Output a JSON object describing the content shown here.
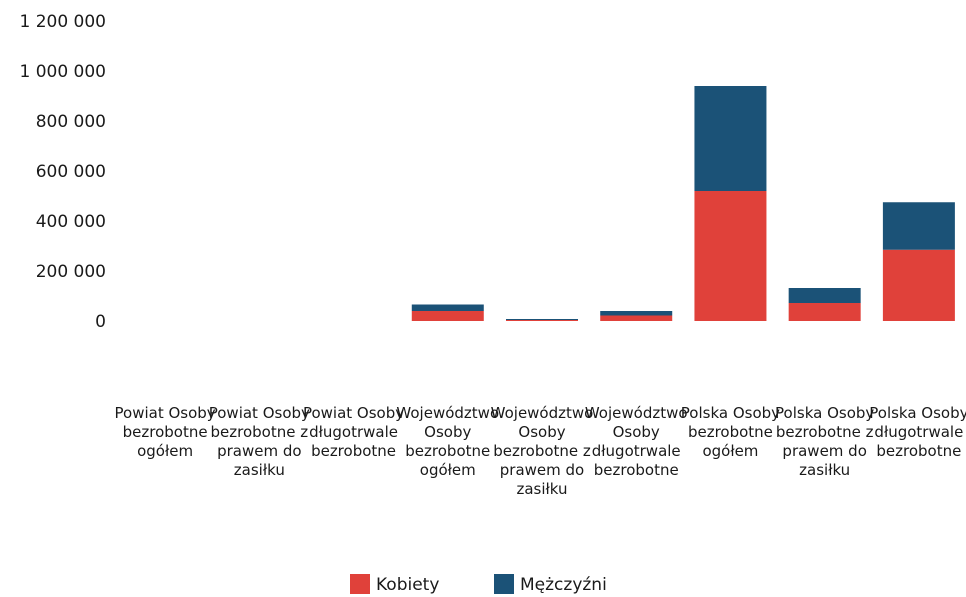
{
  "chart_data": {
    "type": "bar",
    "stacked": true,
    "categories": [
      "Powiat Osoby bezrobotne ogółem",
      "Powiat Osoby bezrobotne z prawem do zasiłku",
      "Powiat Osoby długotrwale bezrobotne",
      "Województwo Osoby bezrobotne ogółem",
      "Województwo Osoby bezrobotne z prawem do zasiłku",
      "Województwo Osoby długotrwale bezrobotne",
      "Polska Osoby bezrobotne ogółem",
      "Polska Osoby bezrobotne z prawem do zasiłku",
      "Polska Osoby długotrwale bezrobotne"
    ],
    "series": [
      {
        "name": "Kobiety",
        "color": "#e0413a",
        "values": [
          0,
          0,
          0,
          40000,
          4000,
          22000,
          520000,
          72000,
          285000
        ]
      },
      {
        "name": "Mężczyźni",
        "color": "#1b5277",
        "values": [
          0,
          0,
          0,
          26000,
          4000,
          18000,
          420000,
          60000,
          190000
        ]
      }
    ],
    "y_ticks": [
      "0",
      "200 000",
      "400 000",
      "600 000",
      "800 000",
      "1 000 000",
      "1 200 000"
    ],
    "ylim": [
      0,
      1200000
    ],
    "legend": "bottom",
    "grid": false
  }
}
